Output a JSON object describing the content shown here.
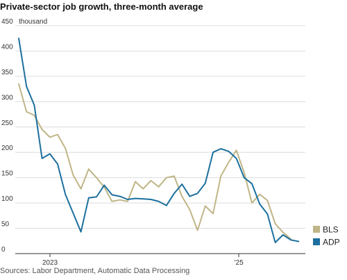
{
  "chart_data": {
    "type": "line",
    "title": "Private-sector job growth, three-month average",
    "y_unit_label": "thousand",
    "source": "Sources: Labor Department, Automatic Data Processing",
    "x_tick_labels": [
      "2023",
      "’25"
    ],
    "y_ticks": [
      0,
      50,
      100,
      150,
      200,
      250,
      300,
      350,
      400,
      450
    ],
    "ylim": [
      0,
      450
    ],
    "grid": true,
    "legend_position": "bottom-right",
    "series": [
      {
        "name": "BLS",
        "color": "#bfb587",
        "values": [
          335,
          280,
          273,
          245,
          230,
          235,
          208,
          155,
          128,
          167,
          150,
          131,
          103,
          106,
          103,
          142,
          128,
          144,
          132,
          150,
          153,
          113,
          87,
          46,
          94,
          79,
          153,
          180,
          204,
          160,
          100,
          117,
          105,
          59,
          42,
          29
        ]
      },
      {
        "name": "ADP",
        "color": "#1c6f9e",
        "values": [
          425,
          330,
          293,
          188,
          197,
          177,
          117,
          80,
          43,
          110,
          112,
          135,
          116,
          113,
          107,
          109,
          108,
          107,
          103,
          95,
          119,
          137,
          113,
          119,
          139,
          200,
          207,
          202,
          188,
          150,
          138,
          98,
          78,
          22,
          37,
          27,
          24
        ]
      }
    ]
  }
}
